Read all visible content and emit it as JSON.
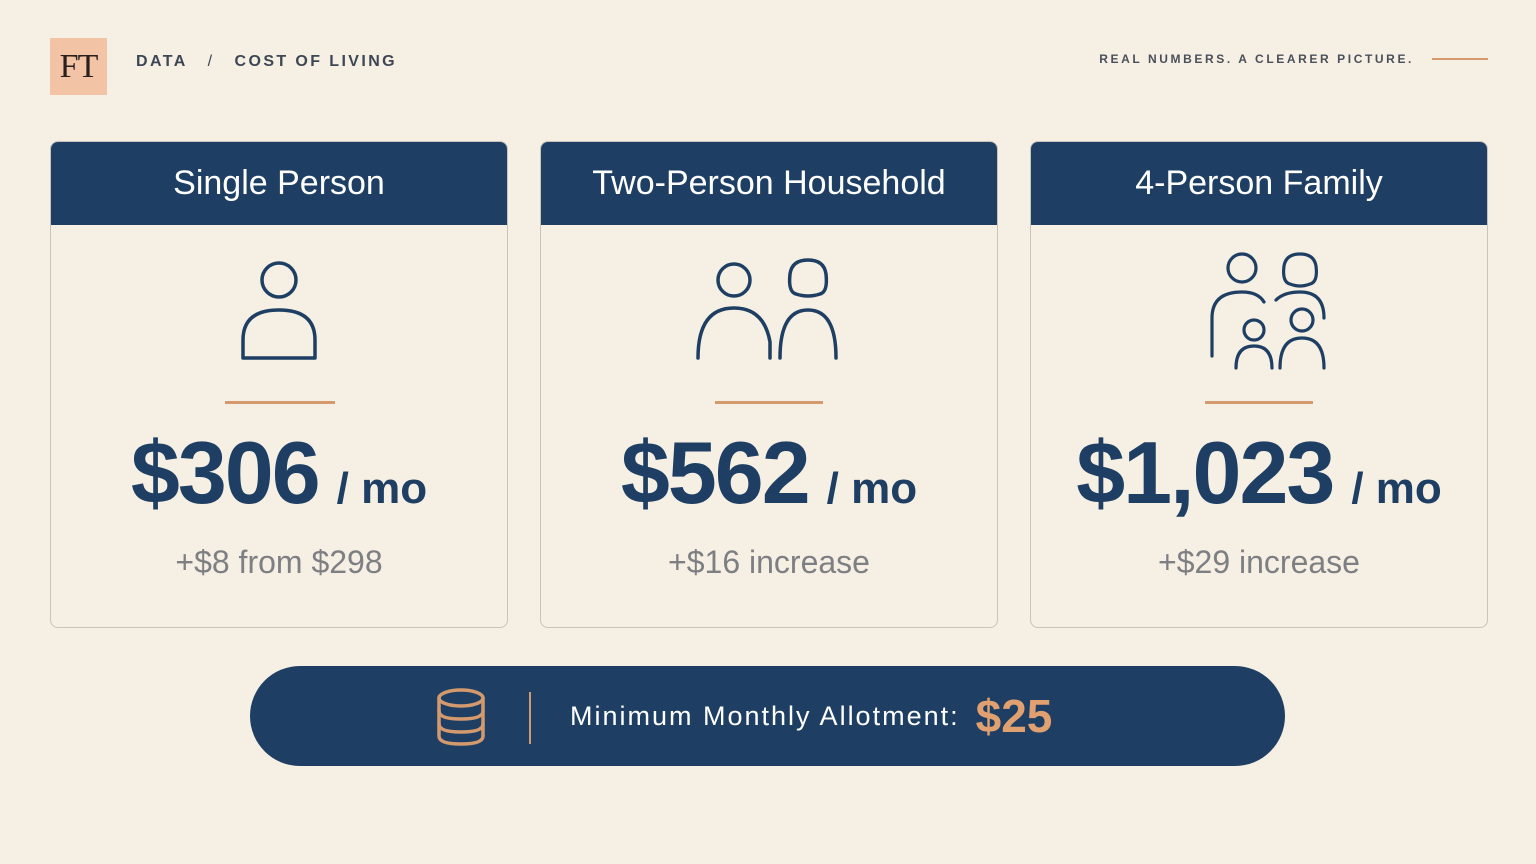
{
  "header": {
    "logo_text": "FT",
    "breadcrumb": [
      "DATA",
      "COST OF LIVING"
    ],
    "breadcrumb_separator": "/",
    "tagline": "REAL NUMBERS. A CLEARER PICTURE."
  },
  "colors": {
    "navy": "#1e3f63",
    "accent": "#d49a6e",
    "background": "#f5efe4",
    "logo_bg": "#f2c3a4"
  },
  "cards": [
    {
      "title": "Single Person",
      "icon": "person-icon",
      "amount": "$306",
      "unit": "/ mo",
      "change": "+$8 from $298"
    },
    {
      "title": "Two-Person Household",
      "icon": "couple-icon",
      "amount": "$562",
      "unit": "/ mo",
      "change": "+$16 increase"
    },
    {
      "title": "4-Person Family",
      "icon": "family-icon",
      "amount": "$1,023",
      "unit": "/ mo",
      "change": "+$29 increase"
    }
  ],
  "allotment": {
    "icon": "coin-stack-icon",
    "label": "Minimum Monthly Allotment:",
    "value": "$25"
  }
}
